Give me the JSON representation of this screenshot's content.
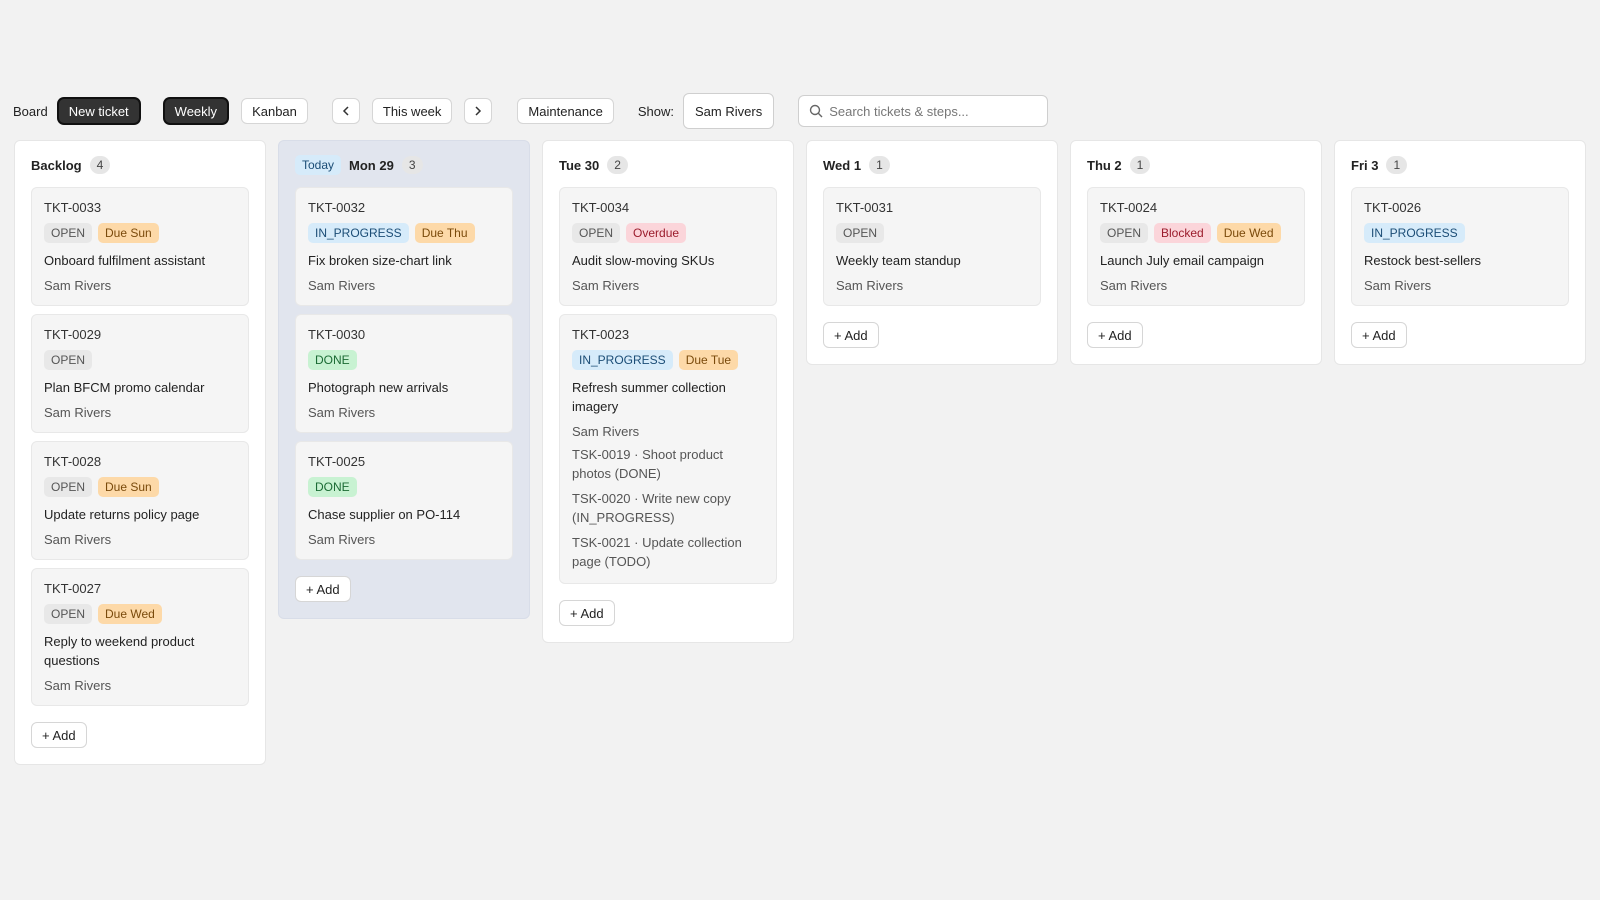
{
  "toolbar": {
    "label": "Board",
    "new_ticket": "New ticket",
    "views": [
      "Weekly",
      "Kanban"
    ],
    "period": "This week",
    "filter": "Maintenance",
    "show_label": "Show:",
    "show_value": "Sam Rivers",
    "search_placeholder": "Search tickets & steps..."
  },
  "add_button": "+ Add",
  "columns": [
    {
      "title": "Backlog",
      "count": 4,
      "cards": [
        {
          "id": "TKT-0033",
          "tags": [
            {
              "text": "OPEN",
              "bg": "#e8e8e8",
              "fg": "#555555"
            },
            {
              "text": "Due Sun",
              "bg": "#fdd9a8",
              "fg": "#7a4a0b"
            }
          ],
          "title": "Onboard fulfilment assistant",
          "assignee": "Sam Rivers"
        },
        {
          "id": "TKT-0029",
          "tags": [
            {
              "text": "OPEN",
              "bg": "#e8e8e8",
              "fg": "#555555"
            }
          ],
          "title": "Plan BFCM promo calendar",
          "assignee": "Sam Rivers"
        },
        {
          "id": "TKT-0028",
          "tags": [
            {
              "text": "OPEN",
              "bg": "#e8e8e8",
              "fg": "#555555"
            },
            {
              "text": "Due Sun",
              "bg": "#fdd9a8",
              "fg": "#7a4a0b"
            }
          ],
          "title": "Update returns policy page",
          "assignee": "Sam Rivers"
        },
        {
          "id": "TKT-0027",
          "tags": [
            {
              "text": "OPEN",
              "bg": "#e8e8e8",
              "fg": "#555555"
            },
            {
              "text": "Due Wed",
              "bg": "#fdd9a8",
              "fg": "#7a4a0b"
            }
          ],
          "title": "Reply to weekend product questions",
          "assignee": "Sam Rivers"
        }
      ]
    },
    {
      "badge": "Today",
      "title": "Mon 29",
      "count": 3,
      "cards": [
        {
          "id": "TKT-0032",
          "tags": [
            {
              "text": "IN_PROGRESS",
              "bg": "#d6ebfa",
              "fg": "#1b4d76"
            },
            {
              "text": "Due Thu",
              "bg": "#fdd9a8",
              "fg": "#7a4a0b"
            }
          ],
          "title": "Fix broken size-chart link",
          "assignee": "Sam Rivers"
        },
        {
          "id": "TKT-0030",
          "tags": [
            {
              "text": "DONE",
              "bg": "#c8f2d2",
              "fg": "#1b6b34"
            }
          ],
          "title": "Photograph new arrivals",
          "assignee": "Sam Rivers"
        },
        {
          "id": "TKT-0025",
          "tags": [
            {
              "text": "DONE",
              "bg": "#c8f2d2",
              "fg": "#1b6b34"
            }
          ],
          "title": "Chase supplier on PO-114",
          "assignee": "Sam Rivers"
        }
      ]
    },
    {
      "title": "Tue 30",
      "count": 2,
      "cards": [
        {
          "id": "TKT-0034",
          "tags": [
            {
              "text": "OPEN",
              "bg": "#e8e8e8",
              "fg": "#555555"
            },
            {
              "text": "Overdue",
              "bg": "#fbd5da",
              "fg": "#9b1c2c"
            }
          ],
          "title": "Audit slow-moving SKUs",
          "assignee": "Sam Rivers"
        },
        {
          "id": "TKT-0023",
          "tags": [
            {
              "text": "IN_PROGRESS",
              "bg": "#d6ebfa",
              "fg": "#1b4d76"
            },
            {
              "text": "Due Tue",
              "bg": "#fdd9a8",
              "fg": "#7a4a0b"
            }
          ],
          "title": "Refresh summer collection imagery",
          "assignee": "Sam Rivers",
          "steps": [
            "TSK-0019 · Shoot product photos (DONE)",
            "TSK-0020 · Write new copy (IN_PROGRESS)",
            "TSK-0021 · Update collection page (TODO)"
          ]
        }
      ]
    },
    {
      "title": "Wed 1",
      "count": 1,
      "cards": [
        {
          "id": "TKT-0031",
          "tags": [
            {
              "text": "OPEN",
              "bg": "#e8e8e8",
              "fg": "#555555"
            }
          ],
          "title": "Weekly team standup",
          "assignee": "Sam Rivers"
        }
      ]
    },
    {
      "title": "Thu 2",
      "count": 1,
      "cards": [
        {
          "id": "TKT-0024",
          "tags": [
            {
              "text": "OPEN",
              "bg": "#e8e8e8",
              "fg": "#555555"
            },
            {
              "text": "Blocked",
              "bg": "#fbd5da",
              "fg": "#9b1c2c"
            },
            {
              "text": "Due Wed",
              "bg": "#fdd9a8",
              "fg": "#7a4a0b"
            }
          ],
          "title": "Launch July email campaign",
          "assignee": "Sam Rivers"
        }
      ]
    },
    {
      "title": "Fri 3",
      "count": 1,
      "cards": [
        {
          "id": "TKT-0026",
          "tags": [
            {
              "text": "IN_PROGRESS",
              "bg": "#d6ebfa",
              "fg": "#1b4d76"
            }
          ],
          "title": "Restock best-sellers",
          "assignee": "Sam Rivers"
        }
      ]
    }
  ]
}
